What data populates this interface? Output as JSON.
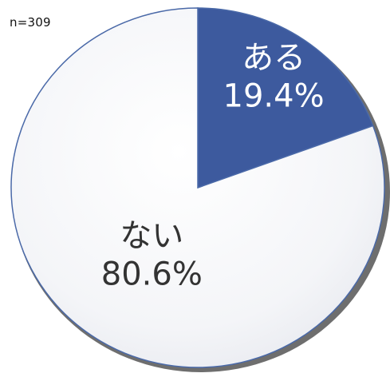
{
  "sample_size": "n=309",
  "chart_data": {
    "type": "pie",
    "start_angle_deg": 0,
    "direction": "clockwise",
    "slices": [
      {
        "label": "ある",
        "value": 19.4,
        "value_label": "19.4%",
        "color": "#3d5a9e",
        "text_color": "#ffffff"
      },
      {
        "label": "ない",
        "value": 80.6,
        "value_label": "80.6%",
        "color": "#f4f5f8",
        "text_color": "#333333"
      }
    ],
    "legend": "none",
    "outline_color": "#4a69a8"
  }
}
